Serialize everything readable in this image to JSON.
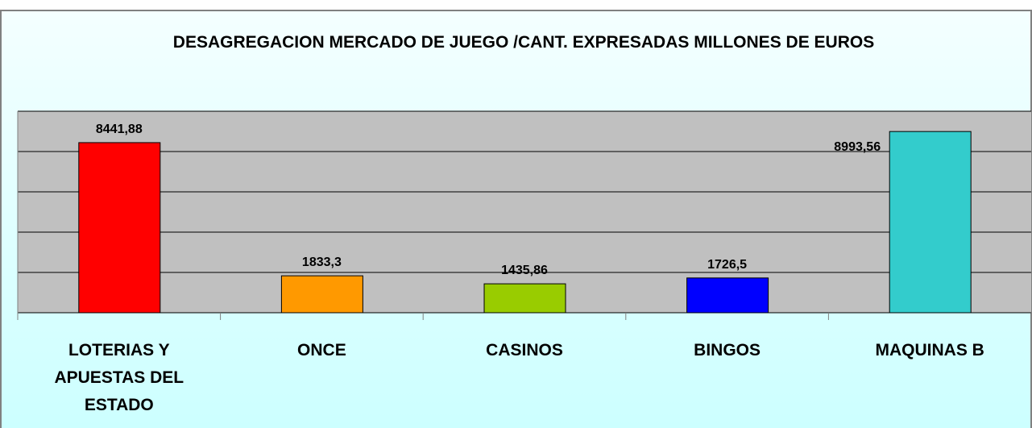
{
  "chart_data": {
    "type": "bar",
    "title": "DESAGREGACION MERCADO DE JUEGO /CANT. EXPRESADAS MILLONES DE EUROS",
    "categories": [
      "LOTERIAS Y APUESTAS DEL ESTADO",
      "ONCE",
      "CASINOS",
      "BINGOS",
      "MAQUINAS B"
    ],
    "values": [
      8441.88,
      1833.3,
      1435.86,
      1726.5,
      8993.56
    ],
    "value_labels": [
      "8441,88",
      "1833,3",
      "1435,86",
      "1726,5",
      "8993,56"
    ],
    "colors": [
      "#ff0000",
      "#ff9900",
      "#99cc00",
      "#0000ff",
      "#33cccc"
    ],
    "ylim": [
      0,
      10000
    ],
    "yticks": [
      0,
      2000,
      4000,
      6000,
      8000,
      10000
    ],
    "grid": true
  }
}
